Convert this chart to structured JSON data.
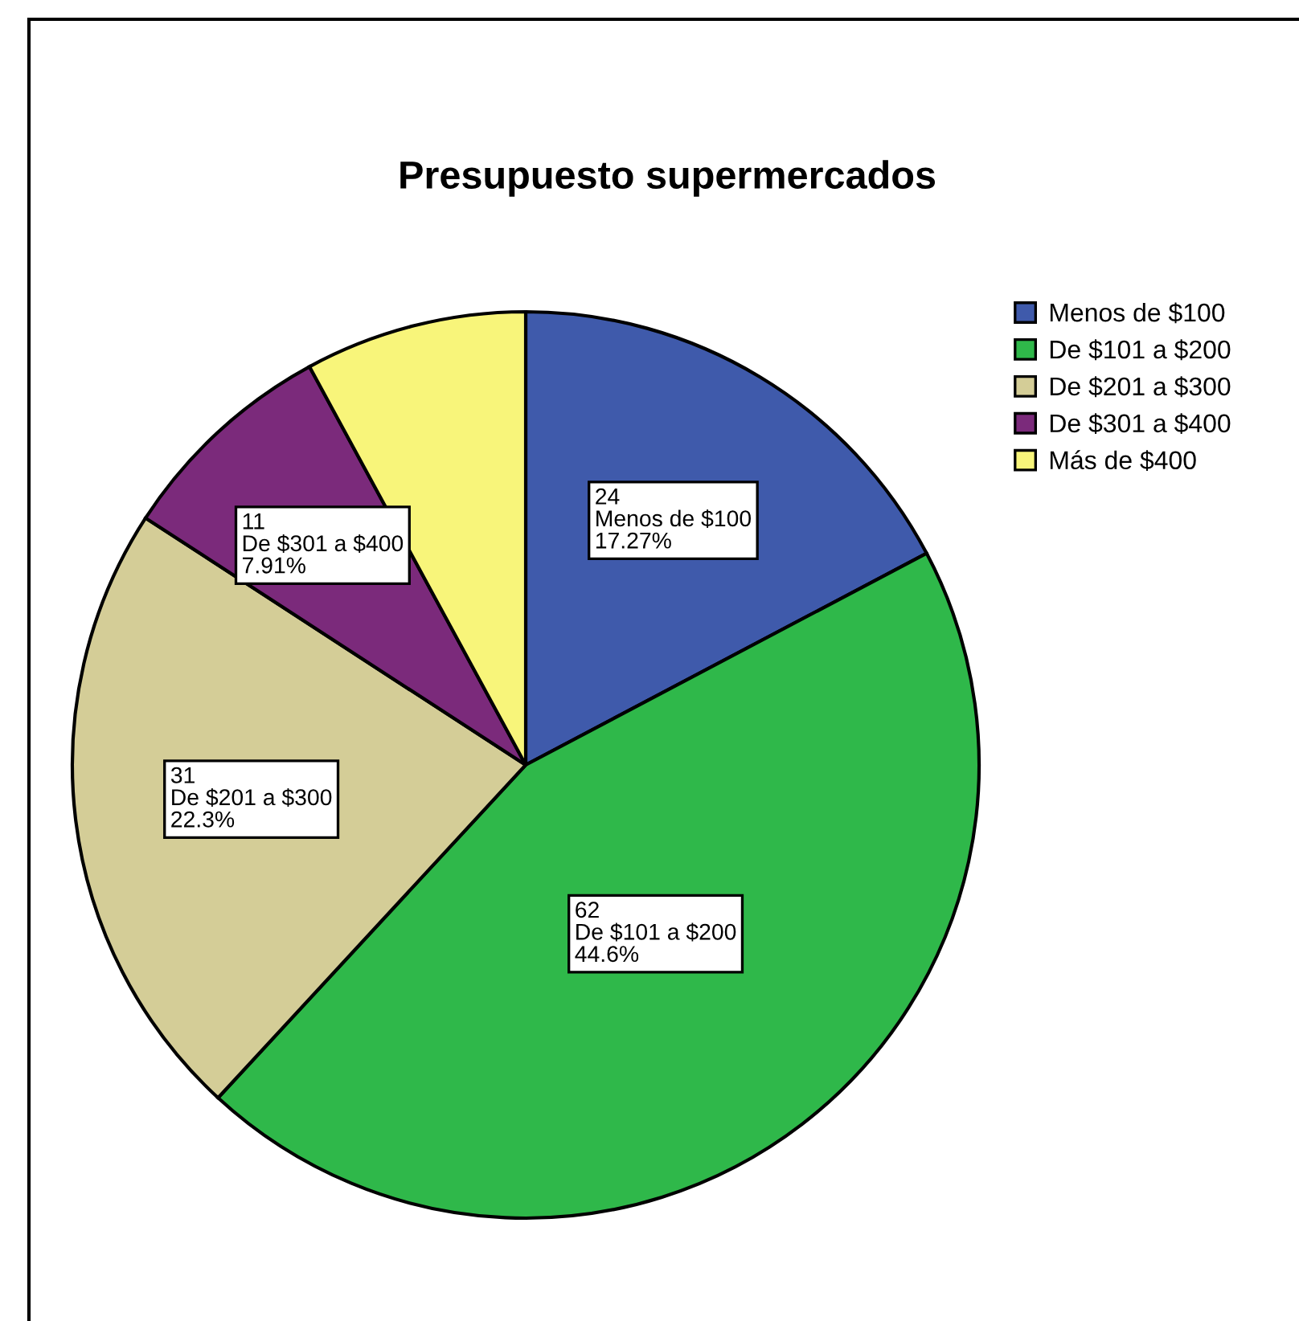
{
  "chart_data": {
    "type": "pie",
    "title": "Presupuesto supermercados",
    "categories": [
      "Menos de $100",
      "De $101 a $200",
      "De $201 a $300",
      "De $301 a $400",
      "Más de $400"
    ],
    "values": [
      24,
      62,
      31,
      11,
      11
    ],
    "colors": [
      "#3f5aab",
      "#2fb84a",
      "#d4cd97",
      "#7b2a7b",
      "#f8f57a"
    ],
    "value_labels": [
      "24\nMenos de $100\n17.27%",
      "62\nDe $101 a $200\n44.6%",
      "31\nDe $201 a $300\n22.3%",
      "11\nDe $301 a $400\n7.91%",
      null
    ],
    "legend": "top right"
  }
}
